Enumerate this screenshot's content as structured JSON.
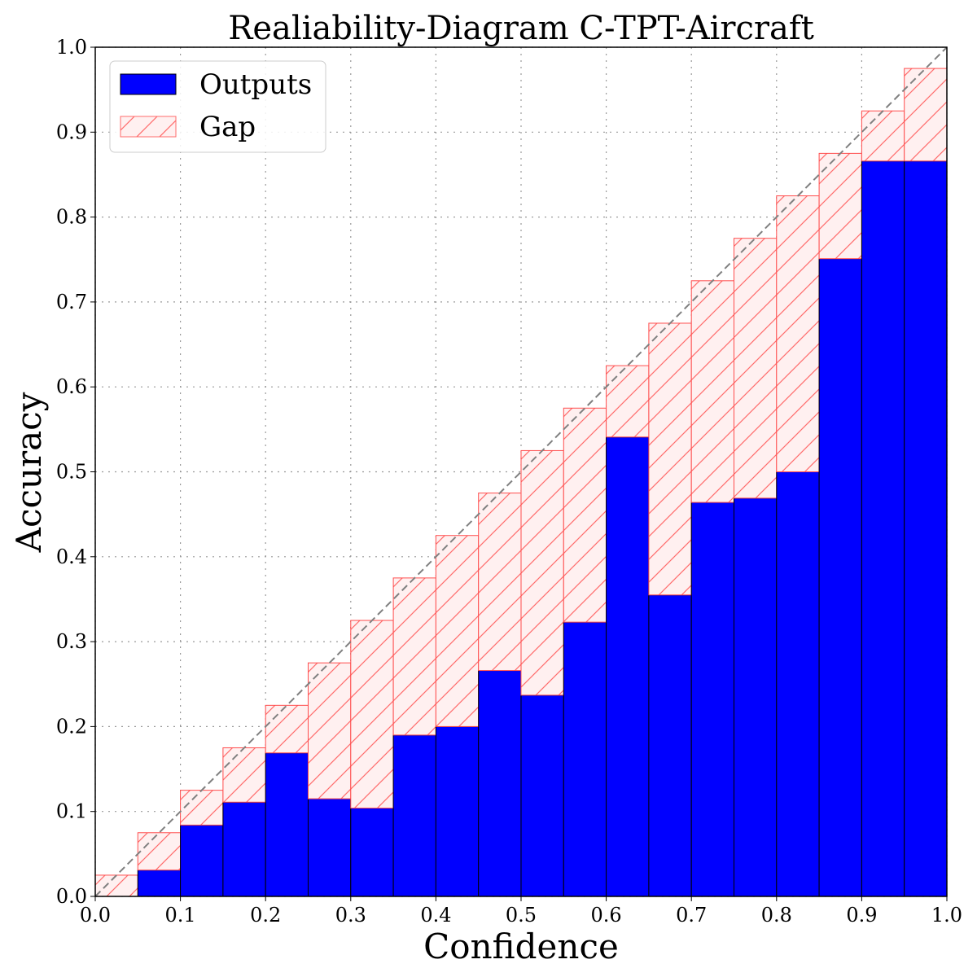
{
  "chart_data": {
    "type": "bar",
    "title": "Realiability-Diagram C-TPT-Aircraft",
    "xlabel": "Confidence",
    "ylabel": "Accuracy",
    "xlim": [
      0,
      1
    ],
    "ylim": [
      0,
      1
    ],
    "grid": true,
    "legend_placement": "top-left",
    "xticks": [
      "0.0",
      "0.1",
      "0.2",
      "0.3",
      "0.4",
      "0.5",
      "0.6",
      "0.7",
      "0.8",
      "0.9",
      "1.0"
    ],
    "yticks": [
      "0.0",
      "0.1",
      "0.2",
      "0.3",
      "0.4",
      "0.5",
      "0.6",
      "0.7",
      "0.8",
      "0.9",
      "1.0"
    ],
    "bin_edges": [
      0,
      0.05,
      0.1,
      0.15,
      0.2,
      0.25,
      0.3,
      0.35,
      0.4,
      0.45,
      0.5,
      0.55,
      0.6,
      0.65,
      0.7,
      0.75,
      0.8,
      0.85,
      0.9,
      0.95,
      1.0
    ],
    "series": [
      {
        "name": "Outputs",
        "color": "#0000ff",
        "values": [
          0.0,
          0.031,
          0.084,
          0.111,
          0.169,
          0.115,
          0.104,
          0.19,
          0.2,
          0.266,
          0.237,
          0.323,
          0.541,
          0.355,
          0.464,
          0.469,
          0.5,
          0.751,
          0.866,
          0.866
        ]
      },
      {
        "name": "Gap",
        "color": "#ff4d4d",
        "fill": "#fff0f0",
        "values": [
          0.025,
          0.075,
          0.125,
          0.175,
          0.225,
          0.275,
          0.325,
          0.375,
          0.425,
          0.475,
          0.525,
          0.575,
          0.625,
          0.675,
          0.725,
          0.775,
          0.825,
          0.875,
          0.925,
          0.975
        ]
      }
    ],
    "reference_line": "y = x"
  }
}
